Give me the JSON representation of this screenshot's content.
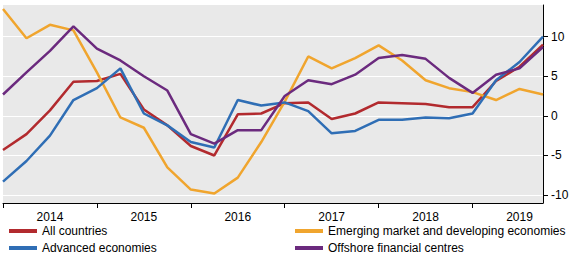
{
  "chart_data": {
    "type": "line",
    "categories": [
      null,
      null,
      "2014",
      null,
      null,
      null,
      "2015",
      null,
      null,
      null,
      "2016",
      null,
      null,
      null,
      "2017",
      null,
      null,
      null,
      "2018",
      null,
      null,
      null,
      "2019",
      null
    ],
    "series": [
      {
        "name": "All countries",
        "color": "#b22a2e",
        "values": [
          -4.3,
          -2.3,
          0.7,
          4.3,
          4.4,
          5.3,
          0.8,
          -1.2,
          -3.8,
          -5.0,
          0.2,
          0.3,
          1.6,
          1.7,
          -0.4,
          0.3,
          1.7,
          1.6,
          1.5,
          1.1,
          1.1,
          4.4,
          6.2,
          9.0
        ]
      },
      {
        "name": "Emerging market and developing economies",
        "color": "#f0a52e",
        "values": [
          13.5,
          9.8,
          11.5,
          10.8,
          5.5,
          -0.2,
          -1.5,
          -6.5,
          -9.3,
          -9.8,
          -7.8,
          -3.3,
          1.8,
          7.5,
          6.0,
          7.3,
          8.9,
          7.0,
          4.5,
          3.5,
          3.0,
          2.0,
          3.4,
          2.7
        ]
      },
      {
        "name": "Advanced economies",
        "color": "#2f6eb5",
        "values": [
          -8.3,
          -5.7,
          -2.5,
          2.0,
          3.5,
          6.0,
          0.3,
          -1.2,
          -3.3,
          -4.0,
          2.0,
          1.3,
          1.7,
          0.6,
          -2.2,
          -1.9,
          -0.5,
          -0.5,
          -0.2,
          -0.3,
          0.3,
          4.5,
          6.8,
          10.0
        ]
      },
      {
        "name": "Offshore financial centres",
        "color": "#6b2a7e",
        "values": [
          2.7,
          5.5,
          8.2,
          11.3,
          8.5,
          7.0,
          5.0,
          3.2,
          -2.3,
          -3.5,
          -1.8,
          -1.8,
          2.5,
          4.5,
          4.0,
          5.2,
          7.3,
          7.7,
          7.2,
          4.8,
          2.9,
          5.2,
          6.0,
          8.7
        ]
      }
    ],
    "ylim": [
      -11,
      14
    ],
    "yticks": [
      -10,
      -5,
      0,
      5,
      10
    ],
    "grid": true
  }
}
